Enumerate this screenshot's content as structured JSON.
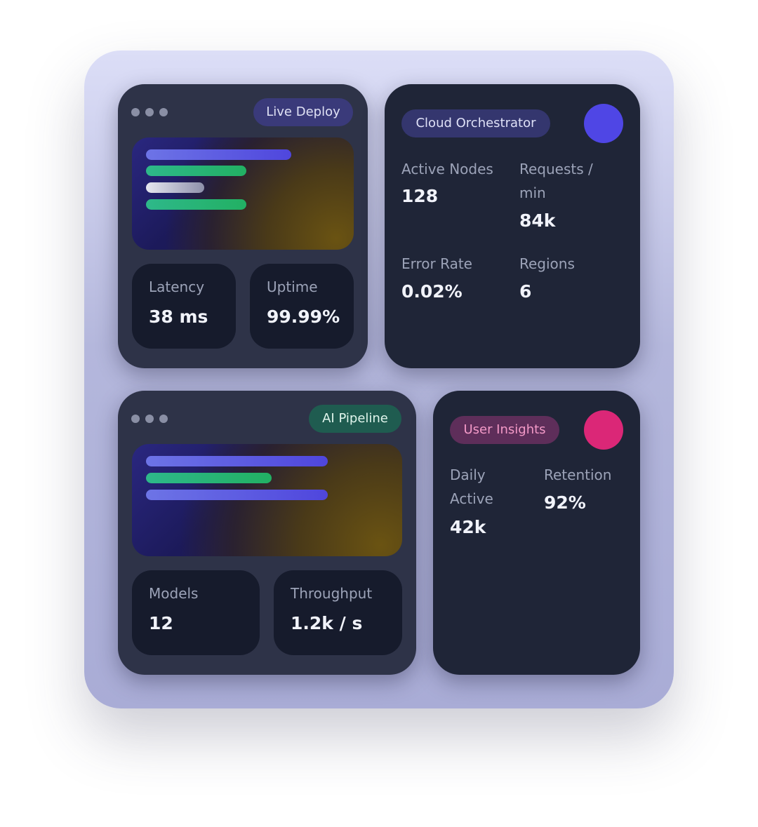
{
  "colors": {
    "accent_indigo": "#4f46e5",
    "accent_pink": "#db2777"
  },
  "live_deploy": {
    "badge": "Live Deploy",
    "stats": [
      {
        "label": "Latency",
        "value": "38 ms"
      },
      {
        "label": "Uptime",
        "value": "99.99%"
      }
    ]
  },
  "cloud": {
    "badge": "Cloud Orchestrator",
    "metrics": [
      {
        "label": "Active Nodes",
        "value": "128"
      },
      {
        "label": "Requests / min",
        "value": "84k"
      },
      {
        "label": "Error Rate",
        "value": "0.02%"
      },
      {
        "label": "Regions",
        "value": "6"
      }
    ]
  },
  "ai_pipeline": {
    "badge": "AI Pipeline",
    "stats": [
      {
        "label": "Models",
        "value": "12"
      },
      {
        "label": "Throughput",
        "value": "1.2k / s"
      }
    ]
  },
  "insights": {
    "badge": "User Insights",
    "metrics": [
      {
        "label": "Daily Active",
        "value": "42k"
      },
      {
        "label": "Retention",
        "value": "92%"
      }
    ]
  }
}
